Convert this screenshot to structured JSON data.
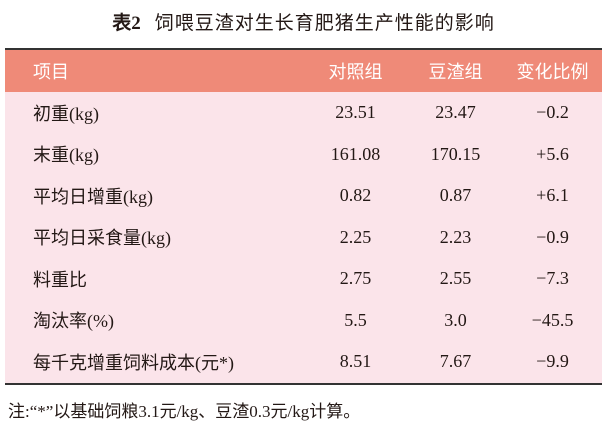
{
  "title": {
    "label": "表2",
    "text": "饲喂豆渣对生长育肥猪生产性能的影响"
  },
  "table": {
    "header": [
      "项目",
      "对照组",
      "豆渣组",
      "变化比例"
    ],
    "rows": [
      [
        "初重(kg)",
        "23.51",
        "23.47",
        "−0.2"
      ],
      [
        "末重(kg)",
        "161.08",
        "170.15",
        "+5.6"
      ],
      [
        "平均日增重(kg)",
        "0.82",
        "0.87",
        "+6.1"
      ],
      [
        "平均日采食量(kg)",
        "2.25",
        "2.23",
        "−0.9"
      ],
      [
        "料重比",
        "2.75",
        "2.55",
        "−7.3"
      ],
      [
        "淘汰率(%)",
        "5.5",
        "3.0",
        "−45.5"
      ],
      [
        "每千克增重饲料成本(元*)",
        "8.51",
        "7.67",
        "−9.9"
      ]
    ]
  },
  "footnote": "注:“*”以基础饲粮3.1元/kg、豆渣0.3元/kg计算。"
}
